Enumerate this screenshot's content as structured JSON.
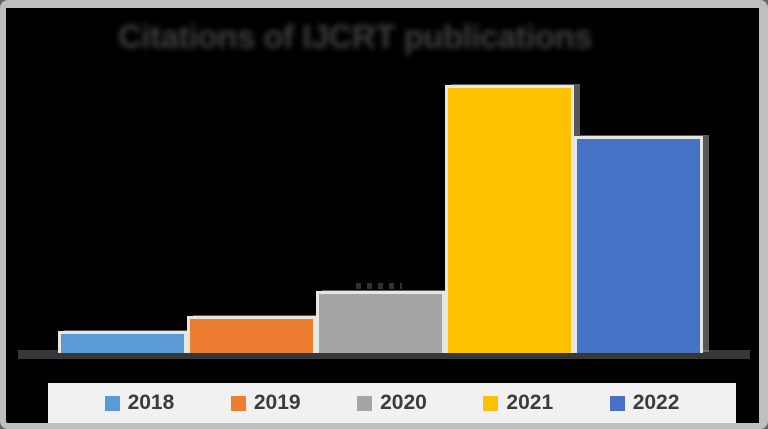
{
  "frame": {
    "background_color": "#000000",
    "border_color": "#bfbfbf"
  },
  "chart_data": {
    "type": "bar",
    "title": "Citations of IJCRT publications",
    "title_color": "#3e3e3e",
    "title_blurred": true,
    "categories": [
      "2018",
      "2019",
      "2020",
      "2021",
      "2022"
    ],
    "values": [
      22,
      37,
      62,
      268,
      217
    ],
    "series_colors": [
      "#5B9BD5",
      "#ED7D31",
      "#A5A5A5",
      "#FFC000",
      "#4472C4"
    ],
    "bar_edge_color": "#e6e6e3",
    "bar_shadow_color": "#9e9e9e",
    "xlabel": "",
    "ylabel": "",
    "axis_tick_labels_visible": false,
    "grid": false,
    "axis_line_color": "#373737",
    "legend_position": "bottom",
    "legend_background": "#f1f1f1",
    "legend_text_color": "#3c3c3c",
    "clipped_label_fragment_above": "2020"
  }
}
